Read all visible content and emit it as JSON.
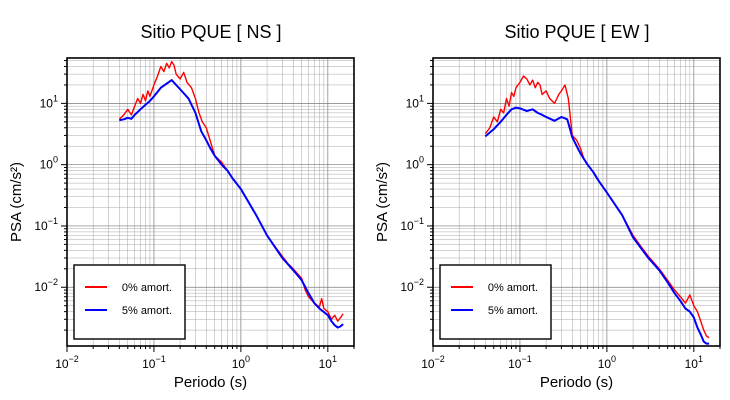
{
  "chart_data": [
    {
      "type": "line",
      "title": "Sitio PQUE [ NS ]",
      "xlabel": "Periodo (s)",
      "ylabel": "PSA (cm/s²)",
      "x_scale": "log",
      "y_scale": "log",
      "xlim": [
        0.01,
        20
      ],
      "ylim": [
        0.0011,
        55
      ],
      "x_ticks": [
        {
          "base": "10",
          "exp": "−2"
        },
        {
          "base": "10",
          "exp": "−1"
        },
        {
          "base": "10",
          "exp": "0"
        },
        {
          "base": "10",
          "exp": "1"
        }
      ],
      "y_ticks": [
        {
          "label": "10",
          "exp": "−2"
        },
        {
          "label": "10",
          "exp": "−1"
        },
        {
          "label": "10",
          "exp": "0"
        },
        {
          "label": "10",
          "exp": "1"
        }
      ],
      "grid": true,
      "legend_position": "bottom-left",
      "series": [
        {
          "name": "0% amort.",
          "color": "#ff0000",
          "points": [
            [
              0.04,
              5.5
            ],
            [
              0.045,
              6.5
            ],
            [
              0.05,
              8
            ],
            [
              0.055,
              6.5
            ],
            [
              0.06,
              9
            ],
            [
              0.065,
              12
            ],
            [
              0.07,
              10
            ],
            [
              0.075,
              14
            ],
            [
              0.08,
              11
            ],
            [
              0.085,
              16
            ],
            [
              0.09,
              13
            ],
            [
              0.1,
              20
            ],
            [
              0.11,
              28
            ],
            [
              0.12,
              40
            ],
            [
              0.13,
              33
            ],
            [
              0.14,
              45
            ],
            [
              0.15,
              38
            ],
            [
              0.16,
              48
            ],
            [
              0.17,
              42
            ],
            [
              0.18,
              30
            ],
            [
              0.2,
              25
            ],
            [
              0.22,
              32
            ],
            [
              0.24,
              22
            ],
            [
              0.27,
              18
            ],
            [
              0.3,
              12
            ],
            [
              0.33,
              7
            ],
            [
              0.36,
              5
            ],
            [
              0.4,
              4
            ],
            [
              0.45,
              2.3
            ],
            [
              0.5,
              1.4
            ],
            [
              0.6,
              1.1
            ],
            [
              0.7,
              0.8
            ],
            [
              0.8,
              0.6
            ],
            [
              1,
              0.4
            ],
            [
              1.5,
              0.15
            ],
            [
              2,
              0.07
            ],
            [
              2.5,
              0.045
            ],
            [
              3,
              0.032
            ],
            [
              3.5,
              0.024
            ],
            [
              4,
              0.02
            ],
            [
              5,
              0.014
            ],
            [
              5.5,
              0.009
            ],
            [
              6,
              0.007
            ],
            [
              7,
              0.0055
            ],
            [
              8,
              0.0048
            ],
            [
              8.5,
              0.0065
            ],
            [
              9,
              0.0045
            ],
            [
              10,
              0.004
            ],
            [
              11,
              0.003
            ],
            [
              12,
              0.0035
            ],
            [
              13,
              0.0028
            ],
            [
              14,
              0.0032
            ],
            [
              15,
              0.0037
            ]
          ]
        },
        {
          "name": "5% amort.",
          "color": "#0000ff",
          "points": [
            [
              0.04,
              5.3
            ],
            [
              0.045,
              5.5
            ],
            [
              0.05,
              5.8
            ],
            [
              0.055,
              5.6
            ],
            [
              0.06,
              6.5
            ],
            [
              0.07,
              8
            ],
            [
              0.08,
              9.5
            ],
            [
              0.09,
              11
            ],
            [
              0.1,
              13
            ],
            [
              0.12,
              18
            ],
            [
              0.14,
              21
            ],
            [
              0.16,
              24
            ],
            [
              0.18,
              20
            ],
            [
              0.2,
              17
            ],
            [
              0.25,
              12
            ],
            [
              0.3,
              7
            ],
            [
              0.35,
              3.5
            ],
            [
              0.4,
              2.5
            ],
            [
              0.45,
              1.8
            ],
            [
              0.5,
              1.4
            ],
            [
              0.6,
              1
            ],
            [
              0.7,
              0.8
            ],
            [
              0.8,
              0.6
            ],
            [
              1,
              0.4
            ],
            [
              1.5,
              0.15
            ],
            [
              2,
              0.07
            ],
            [
              3,
              0.03
            ],
            [
              4,
              0.019
            ],
            [
              5,
              0.013
            ],
            [
              6,
              0.008
            ],
            [
              7,
              0.0055
            ],
            [
              8,
              0.0045
            ],
            [
              10,
              0.0035
            ],
            [
              11,
              0.0028
            ],
            [
              12,
              0.0024
            ],
            [
              13,
              0.0022
            ],
            [
              14,
              0.0023
            ],
            [
              15,
              0.0025
            ]
          ]
        }
      ]
    },
    {
      "type": "line",
      "title": "Sitio PQUE [ EW ]",
      "xlabel": "Periodo (s)",
      "ylabel": "PSA (cm/s²)",
      "x_scale": "log",
      "y_scale": "log",
      "xlim": [
        0.01,
        20
      ],
      "ylim": [
        0.0011,
        55
      ],
      "x_ticks": [
        {
          "base": "10",
          "exp": "−2"
        },
        {
          "base": "10",
          "exp": "−1"
        },
        {
          "base": "10",
          "exp": "0"
        },
        {
          "base": "10",
          "exp": "1"
        }
      ],
      "y_ticks": [
        {
          "label": "10",
          "exp": "−2"
        },
        {
          "label": "10",
          "exp": "−1"
        },
        {
          "label": "10",
          "exp": "0"
        },
        {
          "label": "10",
          "exp": "1"
        }
      ],
      "grid": true,
      "legend_position": "bottom-left",
      "series": [
        {
          "name": "0% amort.",
          "color": "#ff0000",
          "points": [
            [
              0.04,
              3.2
            ],
            [
              0.045,
              4
            ],
            [
              0.05,
              6
            ],
            [
              0.055,
              5
            ],
            [
              0.06,
              8
            ],
            [
              0.065,
              7
            ],
            [
              0.07,
              12
            ],
            [
              0.075,
              9
            ],
            [
              0.08,
              15
            ],
            [
              0.085,
              13
            ],
            [
              0.09,
              18
            ],
            [
              0.1,
              22
            ],
            [
              0.11,
              28
            ],
            [
              0.12,
              25
            ],
            [
              0.13,
              20
            ],
            [
              0.14,
              24
            ],
            [
              0.15,
              18
            ],
            [
              0.16,
              22
            ],
            [
              0.17,
              20
            ],
            [
              0.18,
              14
            ],
            [
              0.2,
              16
            ],
            [
              0.22,
              12
            ],
            [
              0.25,
              10
            ],
            [
              0.28,
              14
            ],
            [
              0.3,
              16
            ],
            [
              0.33,
              20
            ],
            [
              0.36,
              12
            ],
            [
              0.4,
              3
            ],
            [
              0.45,
              2.5
            ],
            [
              0.5,
              1.8
            ],
            [
              0.55,
              1.2
            ],
            [
              0.6,
              1
            ],
            [
              0.7,
              0.75
            ],
            [
              0.8,
              0.55
            ],
            [
              1,
              0.35
            ],
            [
              1.5,
              0.15
            ],
            [
              2,
              0.07
            ],
            [
              2.5,
              0.045
            ],
            [
              3,
              0.032
            ],
            [
              4,
              0.02
            ],
            [
              5,
              0.013
            ],
            [
              6,
              0.009
            ],
            [
              7,
              0.007
            ],
            [
              8,
              0.0055
            ],
            [
              9,
              0.0075
            ],
            [
              10,
              0.005
            ],
            [
              11,
              0.004
            ],
            [
              12,
              0.0028
            ],
            [
              13,
              0.002
            ],
            [
              14,
              0.0016
            ],
            [
              15,
              0.0015
            ]
          ]
        },
        {
          "name": "5% amort.",
          "color": "#0000ff",
          "points": [
            [
              0.04,
              2.9
            ],
            [
              0.05,
              3.8
            ],
            [
              0.06,
              5
            ],
            [
              0.07,
              6.5
            ],
            [
              0.08,
              8
            ],
            [
              0.09,
              8.5
            ],
            [
              0.1,
              8.3
            ],
            [
              0.12,
              7.5
            ],
            [
              0.14,
              8
            ],
            [
              0.16,
              7
            ],
            [
              0.18,
              6.5
            ],
            [
              0.2,
              6
            ],
            [
              0.25,
              5.2
            ],
            [
              0.3,
              6
            ],
            [
              0.35,
              5.5
            ],
            [
              0.4,
              2.8
            ],
            [
              0.45,
              2
            ],
            [
              0.5,
              1.5
            ],
            [
              0.6,
              1
            ],
            [
              0.7,
              0.75
            ],
            [
              0.8,
              0.55
            ],
            [
              1,
              0.35
            ],
            [
              1.5,
              0.15
            ],
            [
              2,
              0.065
            ],
            [
              3,
              0.03
            ],
            [
              4,
              0.019
            ],
            [
              5,
              0.012
            ],
            [
              6,
              0.008
            ],
            [
              7,
              0.006
            ],
            [
              8,
              0.0045
            ],
            [
              9,
              0.004
            ],
            [
              10,
              0.0032
            ],
            [
              11,
              0.0022
            ],
            [
              12,
              0.0017
            ],
            [
              13,
              0.0013
            ],
            [
              14,
              0.0012
            ],
            [
              15,
              0.0012
            ]
          ]
        }
      ]
    }
  ]
}
